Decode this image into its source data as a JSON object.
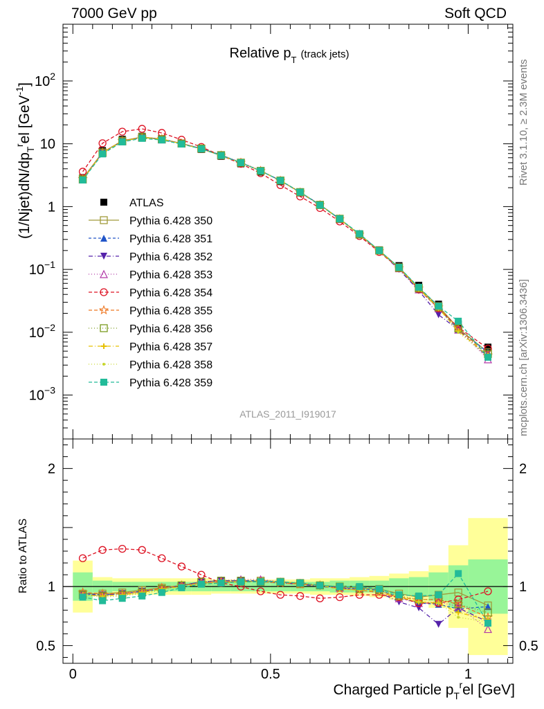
{
  "header": {
    "left": "7000 GeV pp",
    "right": "Soft QCD"
  },
  "side_labels": {
    "rivet": "Rivet 3.1.10, ≥ 2.3M events",
    "mcplots": "mcplots.cern.ch [arXiv:1306.3436]"
  },
  "chart_data": [
    {
      "type": "line",
      "panel": "main",
      "title_main": "Relative p",
      "title_sub": "T",
      "title_suffix": "(track jets)",
      "ylabel": "(1/Njet)dN/dp",
      "ylabel_sub": "T",
      "ylabel_sup": "r",
      "ylabel_tail": "el [GeV",
      "ylabel_unit_sup": "-1",
      "ylabel_close": "]",
      "yscale": "log",
      "xlim": [
        -0.025,
        1.113
      ],
      "ylim": [
        0.0002,
        800
      ],
      "yticks": [
        {
          "v": 0.001,
          "mant": "10",
          "exp": "−3"
        },
        {
          "v": 0.01,
          "mant": "10",
          "exp": "−2"
        },
        {
          "v": 0.1,
          "mant": "10",
          "exp": "−1"
        },
        {
          "v": 1,
          "mant": "1",
          "exp": ""
        },
        {
          "v": 10,
          "mant": "10",
          "exp": ""
        },
        {
          "v": 100,
          "mant": "10",
          "exp": "2"
        }
      ],
      "watermark": "ATLAS_2011_I919017",
      "legend_position": "left",
      "x": [
        0.025,
        0.075,
        0.125,
        0.175,
        0.225,
        0.275,
        0.325,
        0.375,
        0.425,
        0.475,
        0.525,
        0.575,
        0.625,
        0.675,
        0.725,
        0.775,
        0.825,
        0.875,
        0.925,
        0.975,
        1.05
      ],
      "series": [
        {
          "name": "ATLAS",
          "color": "#000000",
          "marker": "fsquare",
          "dash": "none",
          "values": [
            2.9,
            7.8,
            11.8,
            13.2,
            12.0,
            10.0,
            8.1,
            6.3,
            4.8,
            3.55,
            2.5,
            1.65,
            1.05,
            0.64,
            0.37,
            0.205,
            0.115,
            0.056,
            0.028,
            0.0135,
            0.0058
          ]
        },
        {
          "name": "Pythia 6.428 350",
          "color": "#a09a3a",
          "marker": "osquare",
          "dash": "solid",
          "values": [
            2.8,
            7.3,
            11.2,
            12.8,
            11.9,
            10.1,
            8.3,
            6.5,
            5.0,
            3.7,
            2.6,
            1.7,
            1.07,
            0.64,
            0.36,
            0.2,
            0.108,
            0.051,
            0.026,
            0.0115,
            0.0048
          ]
        },
        {
          "name": "Pythia 6.428 351",
          "color": "#2155c8",
          "marker": "ftriangle",
          "dash": "4,3",
          "values": [
            2.75,
            7.2,
            11.0,
            12.6,
            11.8,
            10.1,
            8.4,
            6.6,
            5.0,
            3.72,
            2.6,
            1.7,
            1.07,
            0.63,
            0.36,
            0.2,
            0.105,
            0.048,
            0.024,
            0.011,
            0.0048
          ]
        },
        {
          "name": "Pythia 6.428 352",
          "color": "#5522aa",
          "marker": "ftriangledown",
          "dash": "6,3,1,3",
          "values": [
            2.7,
            7.2,
            11.0,
            12.6,
            11.8,
            10.1,
            8.4,
            6.6,
            5.0,
            3.7,
            2.58,
            1.68,
            1.05,
            0.63,
            0.355,
            0.195,
            0.1,
            0.046,
            0.019,
            0.011,
            0.004
          ]
        },
        {
          "name": "Pythia 6.428 353",
          "color": "#b23aa8",
          "marker": "otriangle",
          "dash": "1,3",
          "values": [
            2.7,
            7.1,
            10.9,
            12.5,
            11.7,
            10.1,
            8.4,
            6.6,
            5.1,
            3.75,
            2.6,
            1.7,
            1.06,
            0.63,
            0.36,
            0.2,
            0.104,
            0.048,
            0.024,
            0.011,
            0.0037
          ]
        },
        {
          "name": "Pythia 6.428 354",
          "color": "#dd1122",
          "marker": "ocircle",
          "dash": "5,3",
          "values": [
            3.6,
            10.2,
            15.6,
            17.3,
            14.9,
            11.6,
            8.9,
            6.5,
            4.8,
            3.4,
            2.2,
            1.45,
            0.95,
            0.58,
            0.34,
            0.19,
            0.105,
            0.048,
            0.024,
            0.012,
            0.0055
          ]
        },
        {
          "name": "Pythia 6.428 355",
          "color": "#ee7722",
          "marker": "ostar",
          "dash": "5,3",
          "values": [
            2.75,
            7.3,
            11.1,
            12.7,
            11.9,
            10.1,
            8.3,
            6.5,
            5.0,
            3.7,
            2.58,
            1.68,
            1.06,
            0.63,
            0.36,
            0.195,
            0.105,
            0.05,
            0.025,
            0.0115,
            0.0043
          ]
        },
        {
          "name": "Pythia 6.428 356",
          "color": "#7a9a1e",
          "marker": "osquare",
          "dash": "1,3",
          "values": [
            2.7,
            7.2,
            11.0,
            12.6,
            11.8,
            10.1,
            8.4,
            6.6,
            5.0,
            3.7,
            2.6,
            1.7,
            1.06,
            0.64,
            0.36,
            0.2,
            0.106,
            0.05,
            0.025,
            0.0115,
            0.0045
          ]
        },
        {
          "name": "Pythia 6.428 357",
          "color": "#e6c000",
          "marker": "fcross",
          "dash": "6,3,1,3",
          "values": [
            2.7,
            7.2,
            11.0,
            12.6,
            11.8,
            10.0,
            8.3,
            6.5,
            5.0,
            3.7,
            2.6,
            1.7,
            1.06,
            0.63,
            0.36,
            0.198,
            0.105,
            0.049,
            0.024,
            0.0105,
            0.0042
          ]
        },
        {
          "name": "Pythia 6.428 358",
          "color": "#c6d62a",
          "marker": "fdot",
          "dash": "1,3",
          "values": [
            2.7,
            7.1,
            10.9,
            12.5,
            11.7,
            10.0,
            8.3,
            6.5,
            5.0,
            3.7,
            2.6,
            1.7,
            1.06,
            0.63,
            0.36,
            0.198,
            0.105,
            0.049,
            0.024,
            0.01,
            0.0041
          ]
        },
        {
          "name": "Pythia 6.428 359",
          "color": "#22bb99",
          "marker": "fsquare",
          "dash": "5,3",
          "values": [
            2.65,
            6.9,
            10.7,
            12.2,
            11.5,
            9.9,
            8.3,
            6.5,
            5.0,
            3.7,
            2.6,
            1.7,
            1.06,
            0.64,
            0.37,
            0.2,
            0.108,
            0.052,
            0.026,
            0.015,
            0.004
          ]
        }
      ]
    },
    {
      "type": "line",
      "panel": "ratio",
      "ylabel": "Ratio to ATLAS",
      "xlabel": "Charged Particle p",
      "xlabel_sub": "T",
      "xlabel_sup": "r",
      "xlabel_tail": "el [GeV]",
      "xlim": [
        -0.025,
        1.113
      ],
      "ylim": [
        0.35,
        2.25
      ],
      "yticks": [
        "0.5",
        "1",
        "2"
      ],
      "yticks_values": [
        0.5,
        1,
        2
      ],
      "xticks": [
        "0",
        "0.5",
        "1"
      ],
      "xticks_values": [
        0,
        0.5,
        1
      ],
      "bands": {
        "edges": [
          0.0,
          0.05,
          0.1,
          0.15,
          0.2,
          0.25,
          0.3,
          0.35,
          0.4,
          0.45,
          0.5,
          0.55,
          0.6,
          0.65,
          0.7,
          0.75,
          0.8,
          0.85,
          0.9,
          0.95,
          1.0,
          1.1
        ],
        "green_half": [
          0.12,
          0.05,
          0.04,
          0.04,
          0.04,
          0.04,
          0.04,
          0.04,
          0.04,
          0.04,
          0.04,
          0.04,
          0.04,
          0.05,
          0.05,
          0.05,
          0.07,
          0.08,
          0.12,
          0.18,
          0.23
        ],
        "yellow_half": [
          0.22,
          0.08,
          0.07,
          0.07,
          0.07,
          0.07,
          0.07,
          0.06,
          0.06,
          0.06,
          0.06,
          0.06,
          0.07,
          0.07,
          0.08,
          0.09,
          0.11,
          0.13,
          0.18,
          0.35,
          0.58
        ],
        "green_color": "#98f598",
        "yellow_color": "#ffff99"
      },
      "series": [
        {
          "name": "Pythia 6.428 350",
          "values": [
            0.94,
            0.94,
            0.95,
            0.97,
            0.99,
            1.01,
            1.03,
            1.04,
            1.04,
            1.05,
            1.04,
            1.02,
            1.01,
            1.0,
            0.99,
            0.98,
            0.94,
            0.91,
            0.93,
            0.95,
            0.84
          ]
        },
        {
          "name": "Pythia 6.428 351",
          "values": [
            0.94,
            0.93,
            0.94,
            0.96,
            0.98,
            1.01,
            1.04,
            1.05,
            1.05,
            1.05,
            1.04,
            1.03,
            1.01,
            0.99,
            0.98,
            0.97,
            0.91,
            0.86,
            0.85,
            0.81,
            0.83
          ]
        },
        {
          "name": "Pythia 6.428 352",
          "values": [
            0.93,
            0.93,
            0.94,
            0.96,
            0.98,
            1.01,
            1.04,
            1.05,
            1.05,
            1.04,
            1.03,
            1.02,
            1.0,
            0.99,
            0.97,
            0.95,
            0.87,
            0.82,
            0.68,
            0.82,
            0.7
          ]
        },
        {
          "name": "Pythia 6.428 353",
          "values": [
            0.93,
            0.92,
            0.93,
            0.95,
            0.98,
            1.01,
            1.04,
            1.05,
            1.06,
            1.06,
            1.04,
            1.03,
            1.01,
            0.99,
            0.98,
            0.97,
            0.9,
            0.86,
            0.87,
            0.83,
            0.64
          ]
        },
        {
          "name": "Pythia 6.428 354",
          "values": [
            1.24,
            1.31,
            1.32,
            1.31,
            1.24,
            1.17,
            1.1,
            1.03,
            1.0,
            0.96,
            0.93,
            0.92,
            0.9,
            0.91,
            0.93,
            0.93,
            0.91,
            0.86,
            0.86,
            0.89,
            0.96
          ]
        },
        {
          "name": "Pythia 6.428 355",
          "values": [
            0.95,
            0.94,
            0.94,
            0.96,
            0.99,
            1.01,
            1.03,
            1.04,
            1.04,
            1.04,
            1.03,
            1.02,
            1.01,
            0.98,
            0.97,
            0.95,
            0.91,
            0.89,
            0.89,
            0.85,
            0.74
          ]
        },
        {
          "name": "Pythia 6.428 356",
          "values": [
            0.93,
            0.92,
            0.93,
            0.95,
            0.98,
            1.01,
            1.04,
            1.05,
            1.05,
            1.04,
            1.04,
            1.03,
            1.01,
            1.0,
            0.98,
            0.97,
            0.92,
            0.89,
            0.89,
            0.85,
            0.78
          ]
        },
        {
          "name": "Pythia 6.428 357",
          "values": [
            0.93,
            0.92,
            0.93,
            0.95,
            0.98,
            1.0,
            1.02,
            1.03,
            1.04,
            1.04,
            1.04,
            1.03,
            1.01,
            0.98,
            0.97,
            0.96,
            0.91,
            0.87,
            0.86,
            0.78,
            0.72
          ]
        },
        {
          "name": "Pythia 6.428 358",
          "values": [
            0.93,
            0.91,
            0.92,
            0.94,
            0.97,
            1.0,
            1.02,
            1.03,
            1.04,
            1.04,
            1.04,
            1.03,
            1.01,
            0.98,
            0.97,
            0.96,
            0.91,
            0.87,
            0.86,
            0.74,
            0.7
          ]
        },
        {
          "name": "Pythia 6.428 359",
          "values": [
            0.91,
            0.88,
            0.9,
            0.92,
            0.95,
            0.99,
            1.02,
            1.03,
            1.04,
            1.04,
            1.04,
            1.03,
            1.01,
            1.0,
            1.0,
            0.98,
            0.93,
            0.92,
            0.93,
            1.11,
            0.69
          ]
        }
      ]
    }
  ]
}
